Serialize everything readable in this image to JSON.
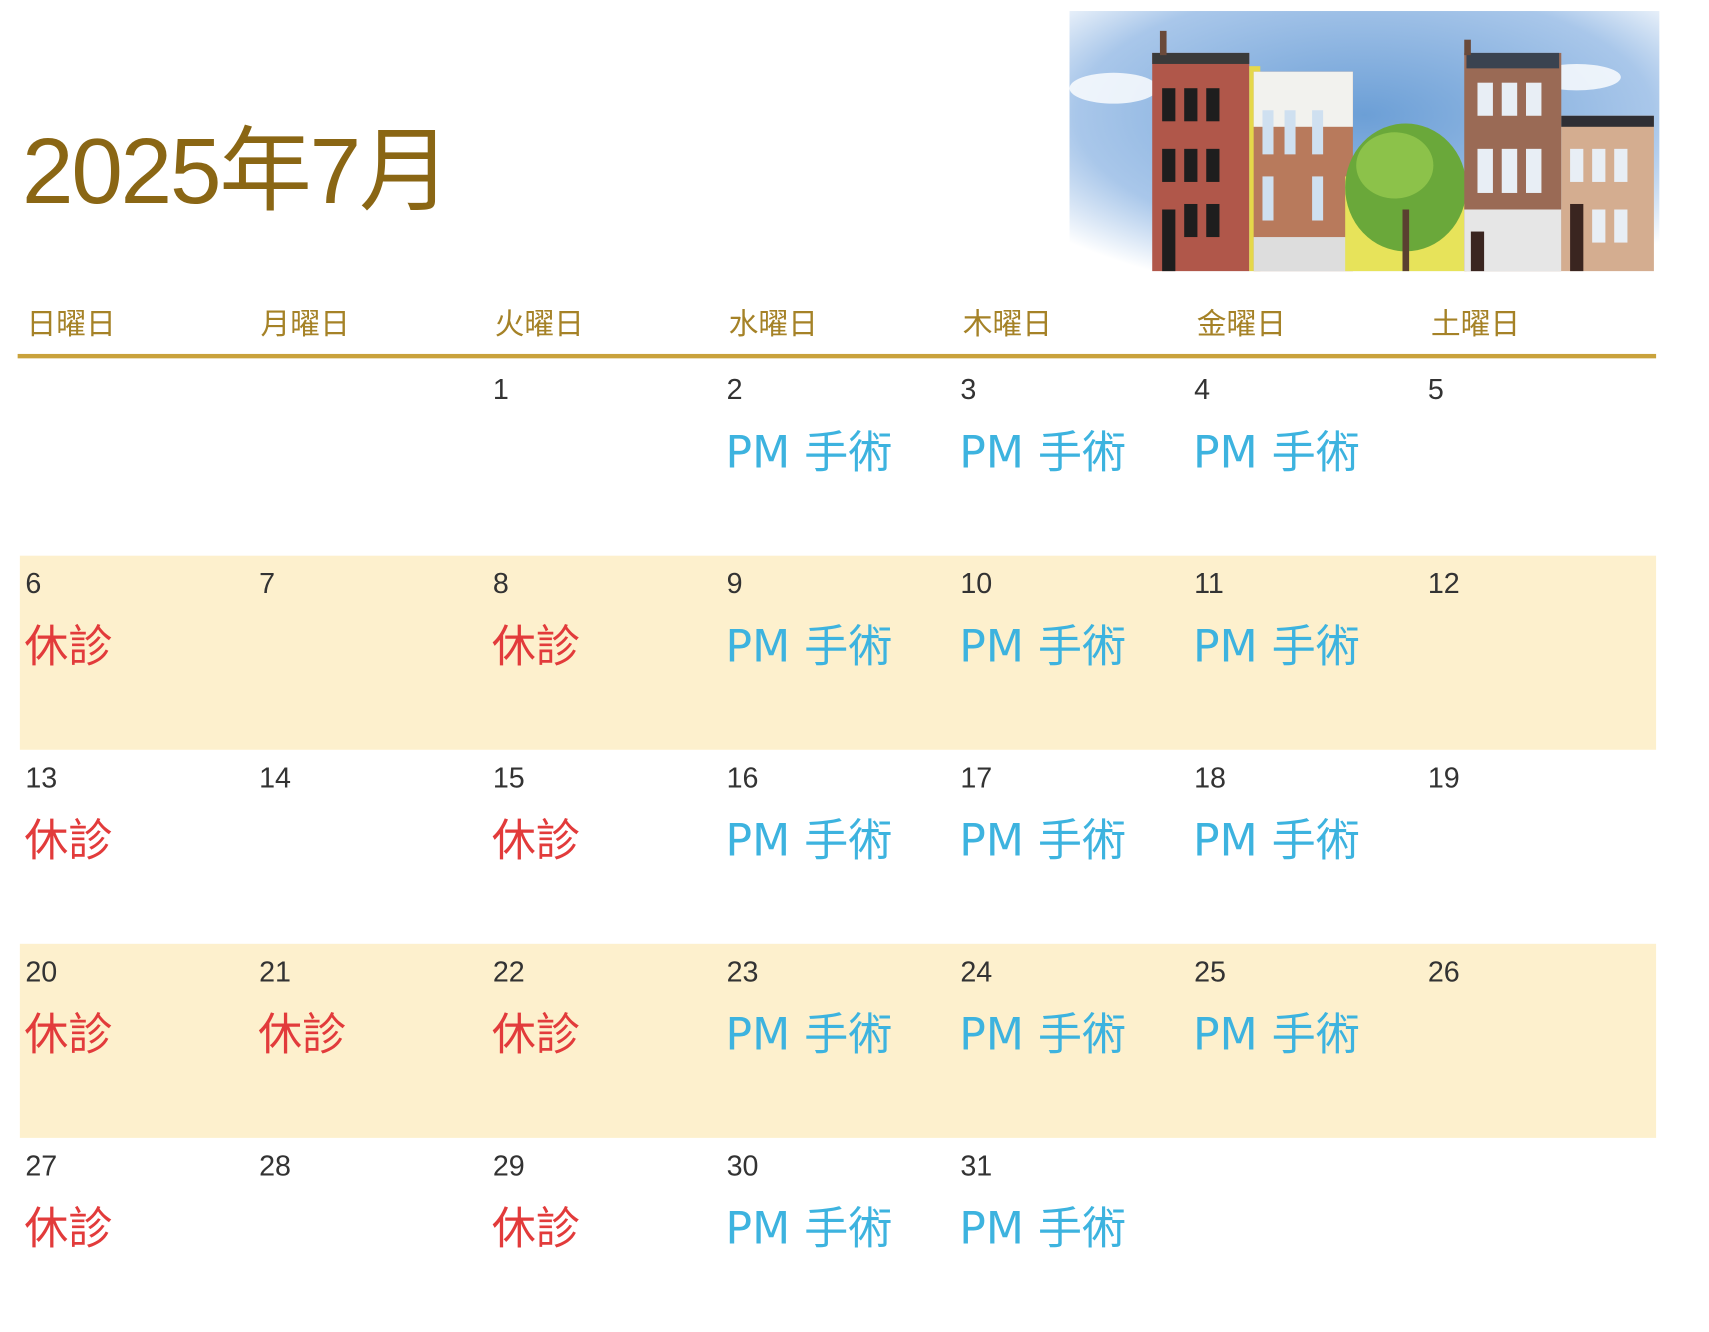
{
  "title": "2025年7月",
  "colors": {
    "title": "#8a6614",
    "weekday": "#a58227",
    "rule": "#c9a23c",
    "shade": "#fdf0cd",
    "closed": "#e23b3b",
    "surgery": "#3db3df"
  },
  "weekdays": [
    "日曜日",
    "月曜日",
    "火曜日",
    "水曜日",
    "木曜日",
    "金曜日",
    "土曜日"
  ],
  "illustration": "townhouses-with-tree",
  "weeks": [
    [
      {
        "day": "",
        "event": ""
      },
      {
        "day": "",
        "event": ""
      },
      {
        "day": "1",
        "event": ""
      },
      {
        "day": "2",
        "event": "PM 手術",
        "type": "surgery"
      },
      {
        "day": "3",
        "event": "PM 手術",
        "type": "surgery"
      },
      {
        "day": "4",
        "event": "PM 手術",
        "type": "surgery"
      },
      {
        "day": "5",
        "event": ""
      }
    ],
    [
      {
        "day": "6",
        "event": "休診",
        "type": "closed"
      },
      {
        "day": "7",
        "event": ""
      },
      {
        "day": "8",
        "event": "休診",
        "type": "closed"
      },
      {
        "day": "9",
        "event": "PM 手術",
        "type": "surgery"
      },
      {
        "day": "10",
        "event": "PM 手術",
        "type": "surgery"
      },
      {
        "day": "11",
        "event": "PM 手術",
        "type": "surgery"
      },
      {
        "day": "12",
        "event": ""
      }
    ],
    [
      {
        "day": "13",
        "event": "休診",
        "type": "closed"
      },
      {
        "day": "14",
        "event": ""
      },
      {
        "day": "15",
        "event": "休診",
        "type": "closed"
      },
      {
        "day": "16",
        "event": "PM 手術",
        "type": "surgery"
      },
      {
        "day": "17",
        "event": "PM 手術",
        "type": "surgery"
      },
      {
        "day": "18",
        "event": "PM 手術",
        "type": "surgery"
      },
      {
        "day": "19",
        "event": ""
      }
    ],
    [
      {
        "day": "20",
        "event": "休診",
        "type": "closed"
      },
      {
        "day": "21",
        "event": "休診",
        "type": "closed"
      },
      {
        "day": "22",
        "event": "休診",
        "type": "closed"
      },
      {
        "day": "23",
        "event": "PM 手術",
        "type": "surgery"
      },
      {
        "day": "24",
        "event": "PM 手術",
        "type": "surgery"
      },
      {
        "day": "25",
        "event": "PM 手術",
        "type": "surgery"
      },
      {
        "day": "26",
        "event": ""
      }
    ],
    [
      {
        "day": "27",
        "event": "休診",
        "type": "closed"
      },
      {
        "day": "28",
        "event": ""
      },
      {
        "day": "29",
        "event": "休診",
        "type": "closed"
      },
      {
        "day": "30",
        "event": "PM 手術",
        "type": "surgery"
      },
      {
        "day": "31",
        "event": "PM 手術",
        "type": "surgery"
      },
      {
        "day": "",
        "event": ""
      },
      {
        "day": "",
        "event": ""
      }
    ]
  ]
}
